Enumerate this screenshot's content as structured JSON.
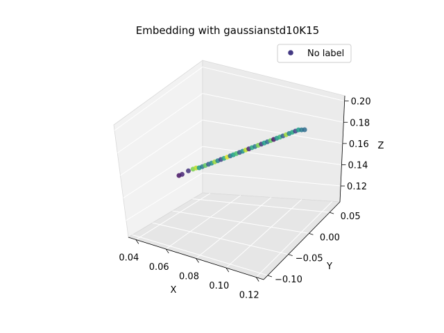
{
  "chart_data": {
    "type": "scatter",
    "title": "Embedding with gaussianstd10K15",
    "xlabel": "X",
    "ylabel": "Y",
    "zlabel": "Z",
    "xlim": [
      0.035,
      0.125
    ],
    "ylim": [
      -0.11,
      0.075
    ],
    "zlim": [
      0.105,
      0.205
    ],
    "x_ticks": [
      "0.04",
      "0.06",
      "0.08",
      "0.10",
      "0.12"
    ],
    "y_ticks": [
      "−0.10",
      "−0.05",
      "0.00",
      "0.05"
    ],
    "z_ticks": [
      "0.12",
      "0.14",
      "0.16",
      "0.18",
      "0.20"
    ],
    "grid": true,
    "legend": {
      "position": "top-right",
      "entries": [
        "No label"
      ]
    },
    "legend_color": "#443983",
    "colormap": "viridis",
    "points": [
      {
        "x": 0.038,
        "y": 0.0,
        "z": 0.121,
        "c": 0.05
      },
      {
        "x": 0.04,
        "y": 0.0,
        "z": 0.123,
        "c": 0.1
      },
      {
        "x": 0.044,
        "y": 0.0,
        "z": 0.128,
        "c": 0.15
      },
      {
        "x": 0.047,
        "y": 0.0,
        "z": 0.131,
        "c": 0.8
      },
      {
        "x": 0.049,
        "y": 0.0,
        "z": 0.133,
        "c": 0.9
      },
      {
        "x": 0.051,
        "y": 0.0,
        "z": 0.134,
        "c": 0.55
      },
      {
        "x": 0.053,
        "y": 0.0,
        "z": 0.136,
        "c": 0.4
      },
      {
        "x": 0.055,
        "y": 0.0,
        "z": 0.138,
        "c": 0.75
      },
      {
        "x": 0.057,
        "y": 0.0,
        "z": 0.14,
        "c": 0.3
      },
      {
        "x": 0.059,
        "y": 0.0,
        "z": 0.142,
        "c": 0.5
      },
      {
        "x": 0.061,
        "y": 0.0,
        "z": 0.144,
        "c": 0.85
      },
      {
        "x": 0.063,
        "y": 0.0,
        "z": 0.146,
        "c": 0.45
      },
      {
        "x": 0.065,
        "y": 0.0,
        "z": 0.148,
        "c": 0.2
      },
      {
        "x": 0.067,
        "y": 0.0,
        "z": 0.15,
        "c": 0.6
      },
      {
        "x": 0.069,
        "y": 0.0,
        "z": 0.152,
        "c": 0.95
      },
      {
        "x": 0.071,
        "y": 0.0,
        "z": 0.154,
        "c": 0.35
      },
      {
        "x": 0.073,
        "y": 0.0,
        "z": 0.156,
        "c": 0.55
      },
      {
        "x": 0.075,
        "y": 0.0,
        "z": 0.158,
        "c": 0.7
      },
      {
        "x": 0.077,
        "y": 0.0,
        "z": 0.16,
        "c": 0.25
      },
      {
        "x": 0.079,
        "y": 0.0,
        "z": 0.162,
        "c": 0.5
      },
      {
        "x": 0.081,
        "y": 0.0,
        "z": 0.164,
        "c": 0.9
      },
      {
        "x": 0.083,
        "y": 0.0,
        "z": 0.166,
        "c": 0.1
      },
      {
        "x": 0.085,
        "y": 0.0,
        "z": 0.168,
        "c": 0.6
      },
      {
        "x": 0.087,
        "y": 0.0,
        "z": 0.17,
        "c": 0.4
      },
      {
        "x": 0.089,
        "y": 0.0,
        "z": 0.172,
        "c": 0.8
      },
      {
        "x": 0.091,
        "y": 0.0,
        "z": 0.174,
        "c": 0.15
      },
      {
        "x": 0.093,
        "y": 0.0,
        "z": 0.176,
        "c": 0.55
      },
      {
        "x": 0.095,
        "y": 0.0,
        "z": 0.178,
        "c": 0.35
      },
      {
        "x": 0.097,
        "y": 0.0,
        "z": 0.18,
        "c": 0.75
      },
      {
        "x": 0.099,
        "y": 0.0,
        "z": 0.182,
        "c": 0.05
      },
      {
        "x": 0.101,
        "y": 0.0,
        "z": 0.184,
        "c": 0.5
      },
      {
        "x": 0.103,
        "y": 0.0,
        "z": 0.186,
        "c": 0.65
      },
      {
        "x": 0.105,
        "y": 0.0,
        "z": 0.188,
        "c": 0.3
      },
      {
        "x": 0.107,
        "y": 0.0,
        "z": 0.19,
        "c": 0.85
      },
      {
        "x": 0.109,
        "y": 0.0,
        "z": 0.192,
        "c": 0.45
      },
      {
        "x": 0.111,
        "y": 0.0,
        "z": 0.194,
        "c": 0.6
      },
      {
        "x": 0.113,
        "y": 0.0,
        "z": 0.196,
        "c": 0.2
      },
      {
        "x": 0.115,
        "y": 0.0,
        "z": 0.198,
        "c": 0.55
      },
      {
        "x": 0.117,
        "y": 0.0,
        "z": 0.199,
        "c": 0.4
      },
      {
        "x": 0.119,
        "y": 0.0,
        "z": 0.2,
        "c": 0.35
      }
    ]
  }
}
